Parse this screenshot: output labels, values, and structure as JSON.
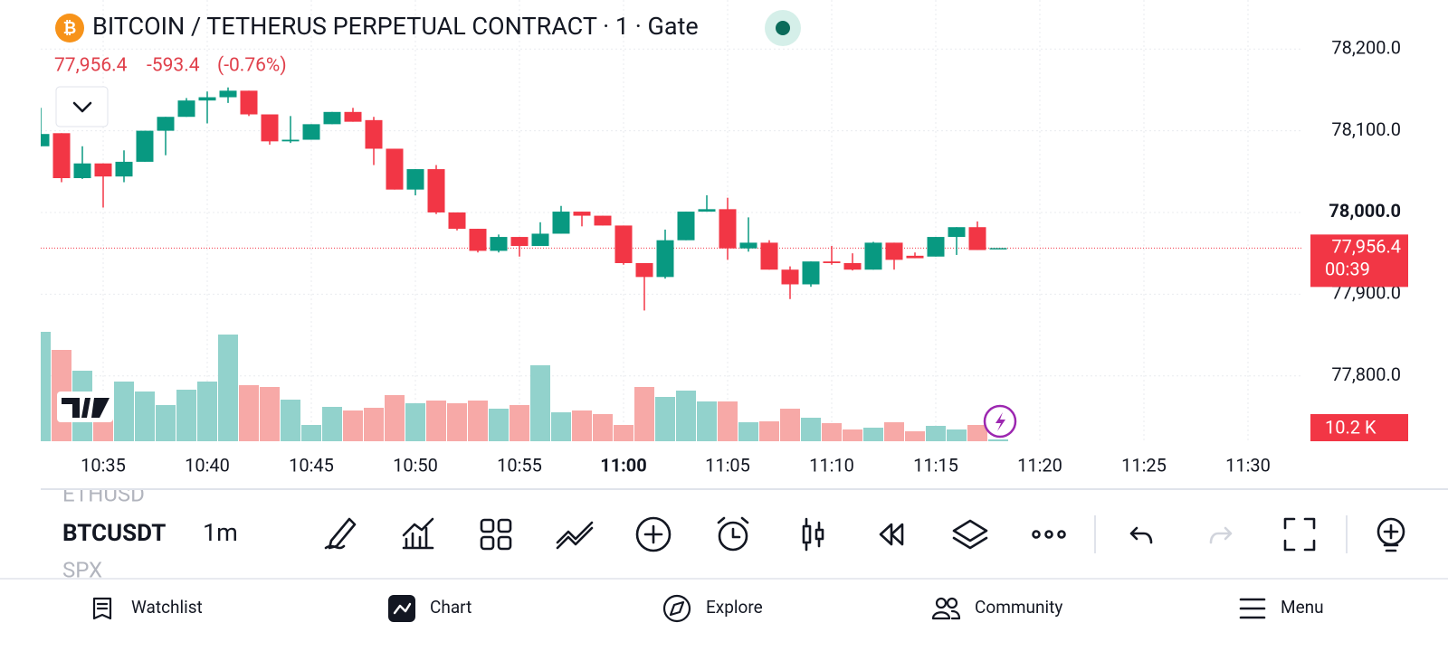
{
  "header": {
    "title": "BITCOIN / TETHERUS PERPETUAL CONTRACT · 1 · Gate",
    "price": "77,956.4",
    "change": "-593.4",
    "change_pct": "(-0.76%)"
  },
  "chart_data": {
    "type": "candlestick",
    "x": [
      "10:32",
      "10:33",
      "10:34",
      "10:35",
      "10:36",
      "10:37",
      "10:38",
      "10:39",
      "10:40",
      "10:41",
      "10:42",
      "10:43",
      "10:44",
      "10:45",
      "10:46",
      "10:47",
      "10:48",
      "10:49",
      "10:50",
      "10:51",
      "10:52",
      "10:53",
      "10:54",
      "10:55",
      "10:56",
      "10:57",
      "10:58",
      "10:59",
      "11:00",
      "11:01",
      "11:02",
      "11:03",
      "11:04",
      "11:05",
      "11:06",
      "11:07",
      "11:08",
      "11:09",
      "11:10",
      "11:11",
      "11:12",
      "11:13",
      "11:14",
      "11:15",
      "11:16",
      "11:17",
      "11:18"
    ],
    "open": [
      78081,
      78097,
      78042,
      78060,
      78044,
      78062,
      78100,
      78117,
      78137,
      78141,
      78149,
      78120,
      78087,
      78089,
      78108,
      78123,
      78113,
      78078,
      78028,
      78053,
      78000,
      77980,
      77953,
      77970,
      77959,
      77974,
      78001,
      77996,
      77984,
      77938,
      77921,
      77966,
      78001,
      78004,
      77956,
      77963,
      77930,
      77912,
      77940,
      77938,
      77930,
      77963,
      77947,
      77946,
      77970,
      77982,
      77956.4
    ],
    "high": [
      78128,
      78097,
      78081,
      78060,
      78076,
      78100,
      78117,
      78140,
      78148,
      78153,
      78149,
      78120,
      78118,
      78108,
      78123,
      78128,
      78117,
      78078,
      78053,
      78058,
      78000,
      77980,
      77973,
      77970,
      77988,
      78008,
      78001,
      77996,
      77984,
      77938,
      77979,
      78001,
      78021,
      78018,
      77994,
      77966,
      77934,
      77940,
      77959,
      77950,
      77964,
      77963,
      77951,
      77970,
      77982,
      77989,
      77956.4
    ],
    "low": [
      78081,
      78037,
      78041,
      78006,
      78037,
      78062,
      78070,
      78117,
      78109,
      78134,
      78118,
      78083,
      78085,
      78089,
      78108,
      78111,
      78058,
      78028,
      78021,
      77998,
      77978,
      77951,
      77951,
      77946,
      77959,
      77974,
      77983,
      77984,
      77936,
      77880,
      77919,
      77966,
      78001,
      77942,
      77952,
      77930,
      77894,
      77909,
      77936,
      77929,
      77930,
      77930,
      77944,
      77946,
      77948,
      77954,
      77956.4
    ],
    "close": [
      78096,
      78042,
      78060,
      78044,
      78062,
      78100,
      78117,
      78137,
      78141,
      78149,
      78120,
      78087,
      78089,
      78108,
      78123,
      78111,
      78078,
      78028,
      78053,
      78000,
      77980,
      77953,
      77970,
      77959,
      77974,
      78001,
      77996,
      77984,
      77938,
      77921,
      77966,
      78001,
      78004,
      77956,
      77963,
      77930,
      77912,
      77940,
      77938,
      77930,
      77963,
      77942,
      77944,
      77970,
      77982,
      77954,
      77956.4
    ],
    "volume": [
      605,
      505,
      390,
      235,
      330,
      275,
      200,
      285,
      330,
      590,
      310,
      300,
      230,
      90,
      190,
      170,
      185,
      255,
      210,
      225,
      210,
      225,
      180,
      200,
      420,
      160,
      170,
      150,
      90,
      300,
      245,
      280,
      220,
      220,
      105,
      110,
      180,
      130,
      100,
      65,
      75,
      105,
      55,
      85,
      65,
      90,
      10.2
    ],
    "up_color": "#089981",
    "down_color": "#f23645",
    "volume_up_color": "#92d2cc",
    "volume_down_color": "#f7a9a7",
    "ylim": [
      77720,
      78260
    ],
    "yticks": [
      {
        "value": 78200,
        "label": "78,200.0"
      },
      {
        "value": 78100,
        "label": "78,100.0"
      },
      {
        "value": 78000,
        "label": "78,000.0",
        "bold": true
      },
      {
        "value": 77900,
        "label": "77,900.0"
      },
      {
        "value": 77800,
        "label": "77,800.0"
      }
    ],
    "xticks": [
      {
        "value": "10:35"
      },
      {
        "value": "10:40"
      },
      {
        "value": "10:45"
      },
      {
        "value": "10:50"
      },
      {
        "value": "10:55"
      },
      {
        "value": "11:00",
        "bold": true
      },
      {
        "value": "11:05"
      },
      {
        "value": "11:10"
      },
      {
        "value": "11:15"
      },
      {
        "value": "11:20"
      },
      {
        "value": "11:25"
      },
      {
        "value": "11:30"
      }
    ],
    "grid": true,
    "last_price": {
      "value": 77956.4,
      "label": "77,956.4"
    },
    "countdown": "00:39",
    "volume_label": "10.2 K"
  },
  "toolbar": {
    "symbols": [
      "ETHUSD",
      "BTCUSDT",
      "SPX"
    ],
    "interval": "1m"
  },
  "nav": [
    "Watchlist",
    "Chart",
    "Explore",
    "Community",
    "Menu"
  ]
}
